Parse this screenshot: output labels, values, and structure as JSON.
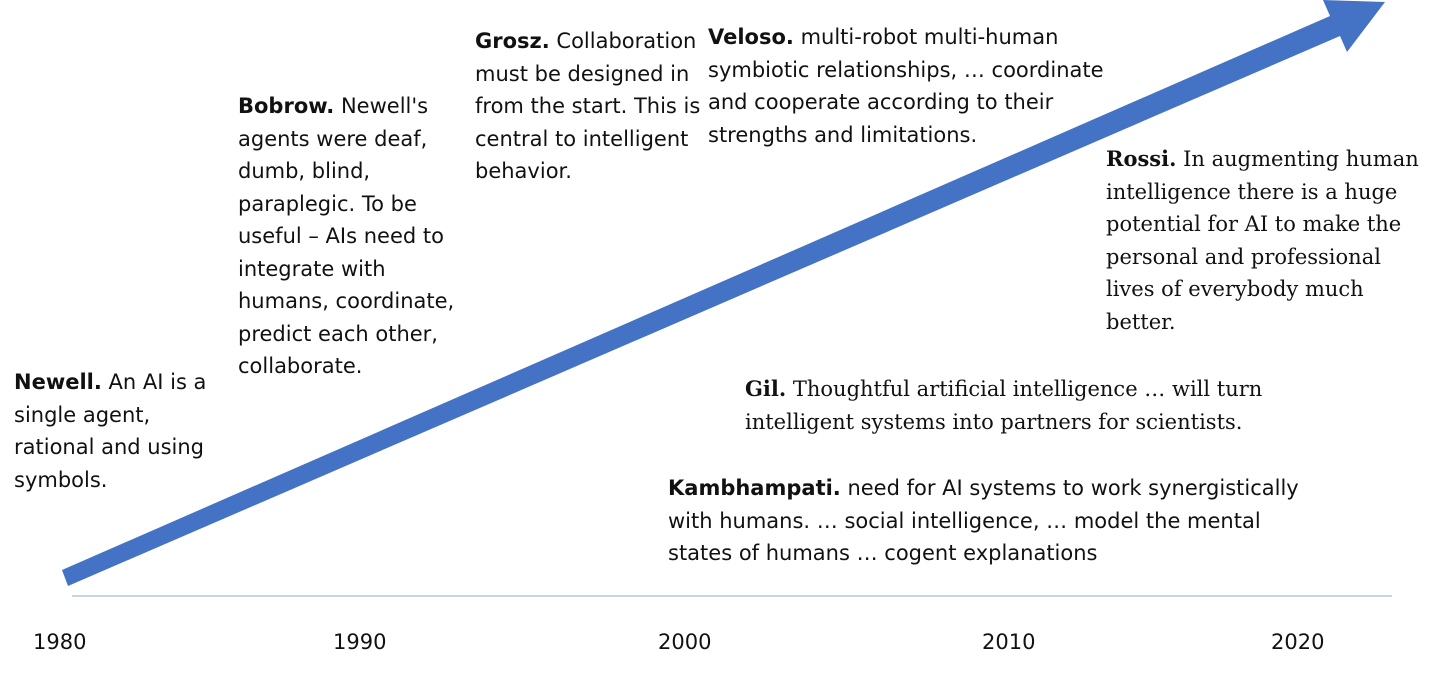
{
  "colors": {
    "arrow": "#4472c4",
    "axis": "#b4c7e7",
    "text": "#111111"
  },
  "timeline": {
    "years": [
      "1980",
      "1990",
      "2000",
      "2010",
      "2020"
    ]
  },
  "notes": {
    "newell": {
      "name": "Newell.",
      "text": " An AI is a single agent, rational and using symbols."
    },
    "bobrow": {
      "name": "Bobrow.",
      "text": "  Newell's agents were deaf, dumb, blind, paraplegic. To be useful – AIs need to integrate with humans, coordinate, predict each other, collaborate."
    },
    "grosz": {
      "name": "Grosz.",
      "text": " Collaboration must be designed in from the start. This is central to intelligent behavior."
    },
    "veloso": {
      "name": "Veloso.",
      "text": " multi-robot multi-human symbiotic relationships, … coordinate and cooperate according to their strengths and limitations."
    },
    "rossi": {
      "name": "Rossi.",
      "text": " In augmenting human intelligence there is a huge potential for AI to make the personal and professional lives of everybody much better."
    },
    "gil": {
      "name": "Gil.",
      "text": " Thoughtful artificial intelligence … will turn intelligent systems into partners for scientists."
    },
    "kambhampati": {
      "name": "Kambhampati.",
      "text": "  need for AI systems to work synergistically with humans. … social intelligence, … model the mental states of humans … cogent explanations"
    }
  }
}
